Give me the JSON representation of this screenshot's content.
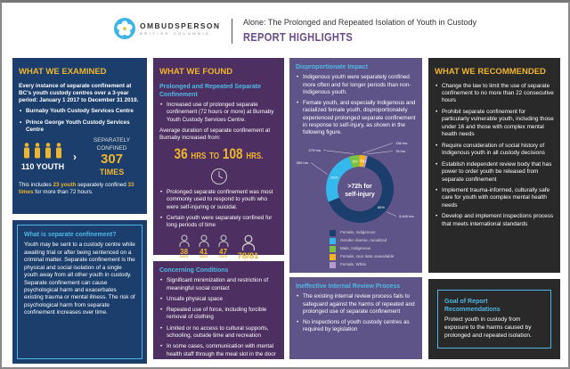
{
  "header": {
    "brand": "OMBUDSPERSON",
    "brand_sub": "BRITISH COLUMBIA",
    "title": "Alone: The Prolonged and Repeated Isolation of Youth in Custody",
    "subtitle": "REPORT HIGHLIGHTS"
  },
  "examined": {
    "heading": "WHAT WE EXAMINED",
    "intro": "Every instance of separate confinement at BC's youth custody centres over a 3-year period: January 1 2017 to December 31 2019.",
    "centres": [
      "Burnaby Youth Custody Services Centre",
      "Prince George Youth Custody Services Centre"
    ],
    "youth": "110 YOUTH",
    "sep_label": "SEPARATELY CONFINED",
    "times_num": "307",
    "times_label": "TIMES",
    "note_a": "This includes ",
    "note_youth": "23 youth",
    "note_b": " separately confined ",
    "note_times": "33 times",
    "note_c": " for more than 72 hours."
  },
  "definition": {
    "heading": "What is separate confinement?",
    "text": "Youth may be sent to a custody centre while awaiting trial or after being sentenced on a criminal matter. Separate confinement is the physical and social isolation of a single youth away from all other youth in custody. Separate confinement can cause psychological harm and exacerbates existing trauma or mental illness. The risk of psychological harm from separate confinement increases over time."
  },
  "found": {
    "heading": "WHAT WE FOUND",
    "sub": "Prolonged and Repeated Separate Confinement",
    "b1": "Increased use of prolonged separate confinement (72 hours or more) at Burnaby Youth Custody Services Centre.",
    "avg": "Average duration of separate confinement at Burnaby increased from:",
    "from": "36",
    "to": "108",
    "hrs": "HRS",
    "to_word": "TO",
    "hrs2": "HRS.",
    "b2": "Prolonged separate confinement was most commonly used to respond to youth who were self-injuring or suicidal.",
    "b3": "Certain youth were separately confined for long periods of time",
    "days": [
      {
        "n": "38",
        "u": "DAYS"
      },
      {
        "n": "41",
        "u": "DAYS"
      },
      {
        "n": "47",
        "u": "DAYS"
      },
      {
        "n": "78/81",
        "u": "DAYS"
      }
    ]
  },
  "conditions": {
    "heading": "Concerning Conditions",
    "items": [
      "Significant minimization and restriction of meaningful social contact",
      "Unsafe physical space",
      "Repeated use of force, including forcible removal of clothing",
      "Limited or no access to cultural supports, schooling, outside time and recreation",
      "In some cases, communication with mental health staff through the meal slot in the door"
    ]
  },
  "impact": {
    "heading": "Disproportionate Impact",
    "items": [
      "Indigenous youth were separately confined more often and for longer periods than non-Indigenous youth.",
      "Female youth, and especially Indigenous and racialized female youth, disproportionately experienced prolonged separate confinement in response to self-injury, as shown in the following figure."
    ]
  },
  "chart_data": {
    "type": "pie",
    "title": ">72h for self-injury",
    "slices": [
      {
        "label": "Male, Indigenous",
        "hours": "279 hrs",
        "value": 5,
        "pct": "5%",
        "color": "#7cc243"
      },
      {
        "label": "Female, race data unavailable",
        "hours": "138 hrs",
        "value": 3,
        "pct": "3%",
        "color": "#f5b223"
      },
      {
        "label": "Female, White",
        "hours": "78 hrs",
        "value": 1,
        "pct": "1%",
        "color": "#b49ad0"
      },
      {
        "label": "Female, Indigenous",
        "hours": "3,440 hrs",
        "value": 65,
        "pct": "65%",
        "color": "#1b3e6c"
      },
      {
        "label": "Gender diverse, racialized",
        "hours": "1,369 hrs",
        "value": 26,
        "pct": "26%",
        "color": "#35b8ec"
      }
    ],
    "legend_order": [
      3,
      4,
      0,
      1,
      2
    ],
    "legend": "bottom"
  },
  "review": {
    "heading": "Ineffective Internal Review Process",
    "items": [
      "The existing internal review process fails to safeguard against the harms of repeated and prolonged use of separate confinement",
      "No inspections of youth custody centres as required by legislation"
    ]
  },
  "recommended": {
    "heading": "WHAT WE RECOMMENDED",
    "items": [
      "Change the law to limit the use of separate confinement to no more than 22 consecutive hours",
      "Prohibit separate confinement for particularly vulnerable youth, including those under 16 and those with complex mental health needs",
      "Require consideration of social history of Indigenous youth in all custody decisions",
      "Establish independent review body that has power to order youth be released from separate confinement",
      "Implement trauma-informed, culturally safe care for youth with complex mental health needs",
      "Develop and implement inspections process that meets international standards"
    ]
  },
  "goal": {
    "heading": "Goal of Report Recommendations",
    "text": "Protect youth in custody from exposure to the harms caused by prolonged and repeated isolation."
  }
}
